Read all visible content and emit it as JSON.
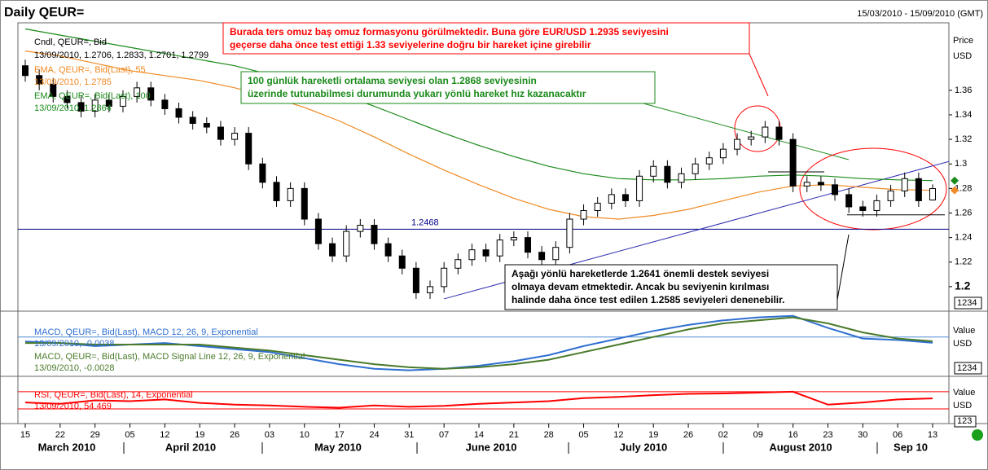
{
  "chart_data": [
    {
      "type": "candlestick",
      "title": "Daily QEUR=",
      "subtitle": "15/03/2010 - 15/09/2010 (GMT)",
      "y_axis_label": "Price",
      "y_axis_unit": "USD",
      "axis_box": "1234",
      "categories": [
        "15",
        "22",
        "29",
        "05",
        "12",
        "19",
        "26",
        "03",
        "10",
        "17",
        "24",
        "31",
        "07",
        "14",
        "21",
        "28",
        "05",
        "12",
        "19",
        "26",
        "02",
        "09",
        "16",
        "23",
        "30",
        "06",
        "13"
      ],
      "months": [
        "March 2010",
        "April 2010",
        "May 2010",
        "June 2010",
        "July 2010",
        "August 2010",
        "Sep 10"
      ],
      "legend": [
        "Cndl, QEUR=, Bid",
        "13/09/2010, 1.2706, 1.2833, 1.2701, 1.2799"
      ],
      "open": [
        1.38,
        1.372,
        1.365,
        1.355,
        1.35,
        1.343,
        1.352,
        1.347,
        1.355,
        1.362,
        1.352,
        1.345,
        1.338,
        1.333,
        1.33,
        1.32,
        1.325,
        1.3,
        1.285,
        1.27,
        1.28,
        1.255,
        1.235,
        1.225,
        1.245,
        1.25,
        1.235,
        1.225,
        1.215,
        1.195,
        1.2,
        1.215,
        1.222,
        1.23,
        1.225,
        1.238,
        1.24,
        1.228,
        1.222,
        1.232,
        1.255,
        1.262,
        1.268,
        1.275,
        1.27,
        1.29,
        1.298,
        1.285,
        1.292,
        1.3,
        1.305,
        1.312,
        1.32,
        1.322,
        1.33,
        1.32,
        1.282,
        1.285,
        1.283,
        1.275,
        1.265,
        1.262,
        1.27,
        1.278,
        1.288,
        1.2706
      ],
      "high": [
        1.385,
        1.377,
        1.37,
        1.36,
        1.355,
        1.357,
        1.357,
        1.36,
        1.367,
        1.367,
        1.357,
        1.35,
        1.343,
        1.338,
        1.335,
        1.33,
        1.33,
        1.305,
        1.29,
        1.285,
        1.285,
        1.26,
        1.24,
        1.25,
        1.255,
        1.255,
        1.24,
        1.23,
        1.22,
        1.205,
        1.22,
        1.227,
        1.235,
        1.235,
        1.243,
        1.245,
        1.245,
        1.233,
        1.237,
        1.26,
        1.267,
        1.273,
        1.28,
        1.28,
        1.295,
        1.303,
        1.303,
        1.297,
        1.305,
        1.31,
        1.317,
        1.325,
        1.327,
        1.335,
        1.335,
        1.325,
        1.29,
        1.29,
        1.288,
        1.28,
        1.27,
        1.275,
        1.283,
        1.293,
        1.293,
        1.2833
      ],
      "low": [
        1.367,
        1.36,
        1.35,
        1.345,
        1.338,
        1.338,
        1.342,
        1.342,
        1.35,
        1.347,
        1.34,
        1.333,
        1.328,
        1.325,
        1.315,
        1.315,
        1.295,
        1.28,
        1.265,
        1.265,
        1.25,
        1.23,
        1.22,
        1.22,
        1.24,
        1.23,
        1.22,
        1.21,
        1.19,
        1.19,
        1.195,
        1.21,
        1.217,
        1.22,
        1.22,
        1.233,
        1.223,
        1.217,
        1.217,
        1.227,
        1.25,
        1.257,
        1.263,
        1.265,
        1.265,
        1.285,
        1.28,
        1.28,
        1.287,
        1.295,
        1.3,
        1.307,
        1.315,
        1.317,
        1.315,
        1.277,
        1.277,
        1.278,
        1.27,
        1.26,
        1.257,
        1.257,
        1.265,
        1.273,
        1.265,
        1.2701
      ],
      "close": [
        1.372,
        1.365,
        1.355,
        1.35,
        1.343,
        1.352,
        1.347,
        1.355,
        1.362,
        1.352,
        1.345,
        1.338,
        1.333,
        1.33,
        1.32,
        1.325,
        1.3,
        1.285,
        1.27,
        1.28,
        1.255,
        1.235,
        1.225,
        1.245,
        1.25,
        1.235,
        1.225,
        1.215,
        1.195,
        1.2,
        1.215,
        1.222,
        1.23,
        1.225,
        1.238,
        1.24,
        1.228,
        1.222,
        1.232,
        1.255,
        1.262,
        1.268,
        1.275,
        1.27,
        1.29,
        1.298,
        1.285,
        1.292,
        1.3,
        1.305,
        1.312,
        1.32,
        1.322,
        1.33,
        1.32,
        1.282,
        1.285,
        1.283,
        1.275,
        1.265,
        1.262,
        1.27,
        1.278,
        1.288,
        1.27,
        1.2799
      ],
      "series": [
        {
          "name": "EMA, QEUR=, Bid(Last), 55",
          "last_label": "13/09/2010, 1.2785",
          "color": "#f08a24",
          "values": [
            1.392,
            1.388,
            1.382,
            1.376,
            1.372,
            1.368,
            1.362,
            1.355,
            1.346,
            1.335,
            1.322,
            1.308,
            1.295,
            1.283,
            1.272,
            1.263,
            1.257,
            1.255,
            1.258,
            1.263,
            1.27,
            1.277,
            1.282,
            1.283,
            1.281,
            1.279,
            1.2785
          ]
        },
        {
          "name": "EMA, QEUR=, Bid(Last), 100",
          "last_label": "13/09/2010, 1.2864",
          "color": "#1a8a1a",
          "values": [
            1.41,
            1.405,
            1.4,
            1.395,
            1.39,
            1.385,
            1.38,
            1.373,
            1.366,
            1.357,
            1.347,
            1.336,
            1.325,
            1.315,
            1.306,
            1.298,
            1.292,
            1.288,
            1.287,
            1.287,
            1.288,
            1.29,
            1.291,
            1.29,
            1.288,
            1.287,
            1.2864
          ]
        }
      ],
      "reference_line": {
        "value": 1.2468,
        "label": "1.2468",
        "color": "#00008b"
      },
      "levels": [
        1.2935,
        1.2585
      ],
      "trendline": [
        1.19,
        1.302
      ],
      "ylim": [
        1.18,
        1.415
      ],
      "yticks": [
        1.2,
        1.22,
        1.24,
        1.26,
        1.28,
        1.3,
        1.32,
        1.34,
        1.36
      ],
      "annotations": [
        {
          "color": "#ff0000",
          "lines": [
            "Burada ters omuz baş omuz formasyonu görülmektedir. Buna göre EUR/USD 1.2935 seviyesini",
            " geçerse daha önce test ettiği 1.33 seviyelerine doğru bir hareket içine girebilir"
          ]
        },
        {
          "color": "#1a8a1a",
          "lines": [
            "100 günlük hareketli ortalama seviyesi olan 1.2868 seviyesinin",
            "üzerinde tutunabilmesi durumunda yukarı yönlü hareket hız kazanacaktır"
          ]
        },
        {
          "color": "#000000",
          "lines": [
            "Aşağı yönlü hareketlerde 1.2641 önemli destek seviyesi",
            "olmaya devam etmektedir. Ancak bu seviyenin kırılması",
            "halinde daha önce test edilen 1.2585 seviyeleri denenebilir."
          ]
        }
      ]
    },
    {
      "type": "line",
      "y_axis_label": "Value",
      "y_axis_unit": "USD",
      "axis_box": "1234",
      "ylim": [
        -0.026,
        0.016
      ],
      "levels": [
        0
      ],
      "level_color": "#4b8bd6",
      "series": [
        {
          "name": "MACD, QEUR=, Bid(Last), MACD 12, 26, 9, Exponential",
          "last_label": "13/09/2010, -0.0038",
          "color": "#2f6fd0",
          "values": [
            -0.003,
            -0.004,
            -0.006,
            -0.005,
            -0.004,
            -0.006,
            -0.008,
            -0.01,
            -0.014,
            -0.018,
            -0.021,
            -0.022,
            -0.021,
            -0.019,
            -0.016,
            -0.012,
            -0.006,
            -0.001,
            0.004,
            0.008,
            0.011,
            0.013,
            0.014,
            0.006,
            -0.001,
            -0.002,
            -0.0038
          ]
        },
        {
          "name": "MACD, QEUR=, Bid(Last), MACD Signal Line 12, 26, 9, Exponential",
          "last_label": "13/09/2010, -0.0028",
          "color": "#4a7a2a",
          "values": [
            -0.004,
            -0.004,
            -0.005,
            -0.005,
            -0.005,
            -0.005,
            -0.007,
            -0.009,
            -0.012,
            -0.015,
            -0.018,
            -0.02,
            -0.021,
            -0.02,
            -0.018,
            -0.015,
            -0.01,
            -0.005,
            0.0,
            0.005,
            0.009,
            0.011,
            0.013,
            0.009,
            0.003,
            -0.001,
            -0.0028
          ]
        }
      ]
    },
    {
      "type": "line",
      "y_axis_label": "Value",
      "y_axis_unit": "USD",
      "axis_box": "123",
      "ylim": [
        -4,
        102
      ],
      "levels": [
        30,
        70
      ],
      "level_color": "#ff0000",
      "series": [
        {
          "name": "RSI, QEUR=, Bid(Last), 14, Exponential",
          "last_label": "13/09/2010, 54.469",
          "color": "#ff0000",
          "values": [
            45,
            42,
            50,
            48,
            52,
            44,
            40,
            38,
            35,
            33,
            38,
            35,
            37,
            42,
            45,
            48,
            55,
            58,
            62,
            65,
            66,
            68,
            70,
            40,
            45,
            52,
            54.469
          ]
        }
      ]
    }
  ]
}
